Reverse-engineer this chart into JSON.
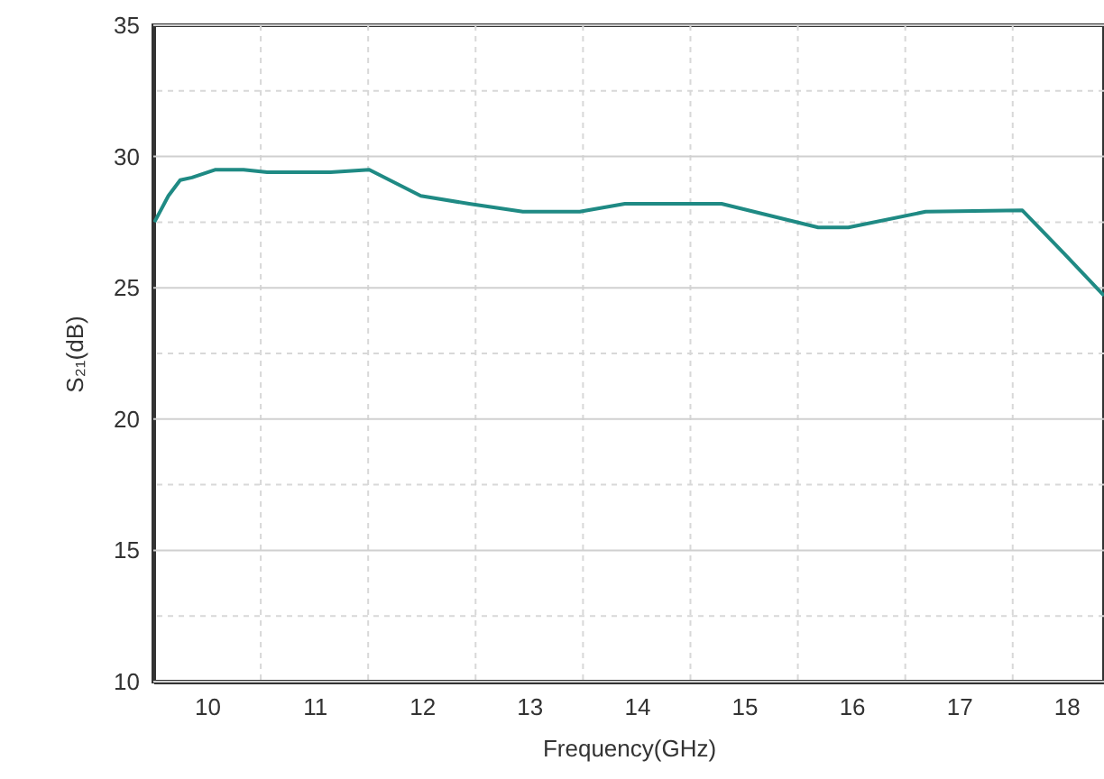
{
  "chart_data": {
    "type": "line",
    "xlabel": "Frequency(GHz)",
    "ylabel": "S₂₁(dB)",
    "x": [
      9.51,
      9.64,
      9.75,
      9.86,
      10.08,
      10.34,
      10.56,
      11.15,
      11.51,
      11.99,
      12.44,
      12.94,
      13.47,
      13.89,
      14.79,
      15.69,
      15.97,
      16.69,
      17.59,
      17.98,
      18.35
    ],
    "series": [
      {
        "color": "#1f8a84",
        "values": [
          27.5,
          28.5,
          29.1,
          29.2,
          29.5,
          29.5,
          29.4,
          29.4,
          29.5,
          28.5,
          28.2,
          27.9,
          27.9,
          28.2,
          28.2,
          27.3,
          27.3,
          27.9,
          27.95,
          26.3,
          24.7
        ]
      }
    ],
    "xlim": [
      9.5,
      18.35
    ],
    "ylim": [
      10,
      35
    ],
    "xticks": [
      10,
      {
        "value": 10.5,
        "label": null
      },
      11,
      {
        "value": 11.5,
        "label": null
      },
      12,
      {
        "value": 12.5,
        "label": null
      },
      13,
      {
        "value": 13.5,
        "label": null
      },
      14,
      {
        "value": 14.5,
        "label": null
      },
      15,
      {
        "value": 15.5,
        "label": null
      },
      16,
      {
        "value": 16.5,
        "label": null
      },
      17,
      {
        "value": 17.5,
        "label": null
      },
      18
    ],
    "yticks": [
      10,
      {
        "value": 12.5,
        "label": null
      },
      15,
      {
        "value": 17.5,
        "label": null
      },
      20,
      {
        "value": 22.5,
        "label": null
      },
      25,
      {
        "value": 27.5,
        "label": null
      },
      30,
      {
        "value": 32.5,
        "label": null
      },
      35
    ],
    "grid": true,
    "line_style": "solid",
    "marker": "none"
  }
}
